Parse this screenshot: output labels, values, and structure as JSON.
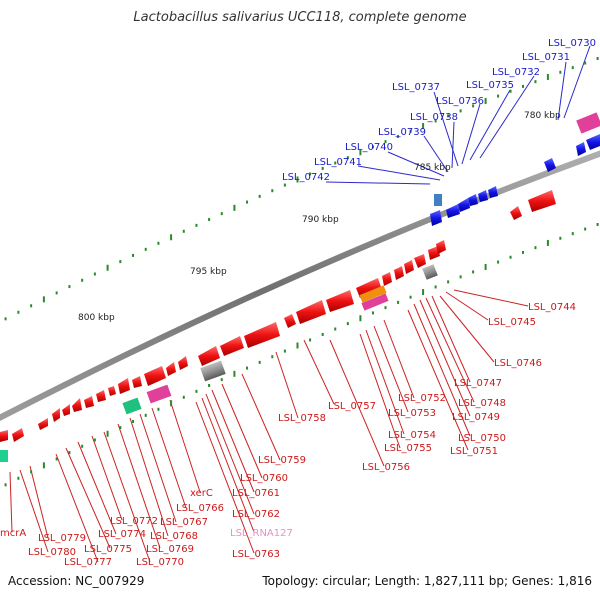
{
  "header": {
    "title": "Lactobacillus salivarius UCC118, complete genome"
  },
  "footer": {
    "accession": "Accession: NC_007929",
    "stats": "Topology: circular; Length: 1,827,111 bp; Genes: 1,816"
  },
  "colors": {
    "forward_gene": "#1010e0",
    "reverse_gene": "#e01010",
    "label_forward": "#1a1acc",
    "label_reverse": "#cc1a1a",
    "label_rna": "#e890c8",
    "backbone": "#808080",
    "tick": "#2a8a2a"
  },
  "kbp_labels": [
    "780 kbp",
    "785 kbp",
    "790 kbp",
    "795 kbp",
    "800 kbp"
  ],
  "gene_labels": [
    {
      "text": "LSL_0730",
      "strand": "forward"
    },
    {
      "text": "LSL_0731",
      "strand": "forward"
    },
    {
      "text": "LSL_0732",
      "strand": "forward"
    },
    {
      "text": "LSL_0735",
      "strand": "forward"
    },
    {
      "text": "LSL_0736",
      "strand": "forward"
    },
    {
      "text": "LSL_0737",
      "strand": "forward"
    },
    {
      "text": "LSL_0738",
      "strand": "forward"
    },
    {
      "text": "LSL_0739",
      "strand": "forward"
    },
    {
      "text": "LSL_0740",
      "strand": "forward"
    },
    {
      "text": "LSL_0741",
      "strand": "forward"
    },
    {
      "text": "LSL_0742",
      "strand": "forward"
    },
    {
      "text": "LSL_0744",
      "strand": "reverse"
    },
    {
      "text": "LSL_0745",
      "strand": "reverse"
    },
    {
      "text": "LSL_0746",
      "strand": "reverse"
    },
    {
      "text": "LSL_0747",
      "strand": "reverse"
    },
    {
      "text": "LSL_0748",
      "strand": "reverse"
    },
    {
      "text": "LSL_0749",
      "strand": "reverse"
    },
    {
      "text": "LSL_0750",
      "strand": "reverse"
    },
    {
      "text": "LSL_0751",
      "strand": "reverse"
    },
    {
      "text": "LSL_0752",
      "strand": "reverse"
    },
    {
      "text": "LSL_0753",
      "strand": "reverse"
    },
    {
      "text": "LSL_0754",
      "strand": "reverse"
    },
    {
      "text": "LSL_0755",
      "strand": "reverse"
    },
    {
      "text": "LSL_0756",
      "strand": "reverse"
    },
    {
      "text": "LSL_0757",
      "strand": "reverse"
    },
    {
      "text": "LSL_0758",
      "strand": "reverse"
    },
    {
      "text": "LSL_0759",
      "strand": "reverse"
    },
    {
      "text": "LSL_0760",
      "strand": "reverse"
    },
    {
      "text": "LSL_0761",
      "strand": "reverse"
    },
    {
      "text": "LSL_0762",
      "strand": "reverse"
    },
    {
      "text": "LSL_RNA127",
      "strand": "rna"
    },
    {
      "text": "LSL_0763",
      "strand": "reverse"
    },
    {
      "text": "xerC",
      "strand": "reverse"
    },
    {
      "text": "LSL_0766",
      "strand": "reverse"
    },
    {
      "text": "LSL_0767",
      "strand": "reverse"
    },
    {
      "text": "LSL_0768",
      "strand": "reverse"
    },
    {
      "text": "LSL_0769",
      "strand": "reverse"
    },
    {
      "text": "LSL_0770",
      "strand": "reverse"
    },
    {
      "text": "LSL_0772",
      "strand": "reverse"
    },
    {
      "text": "LSL_0774",
      "strand": "reverse"
    },
    {
      "text": "LSL_0775",
      "strand": "reverse"
    },
    {
      "text": "LSL_0777",
      "strand": "reverse"
    },
    {
      "text": "LSL_0779",
      "strand": "reverse"
    },
    {
      "text": "LSL_0780",
      "strand": "reverse"
    },
    {
      "text": "mcrA",
      "strand": "reverse"
    }
  ]
}
